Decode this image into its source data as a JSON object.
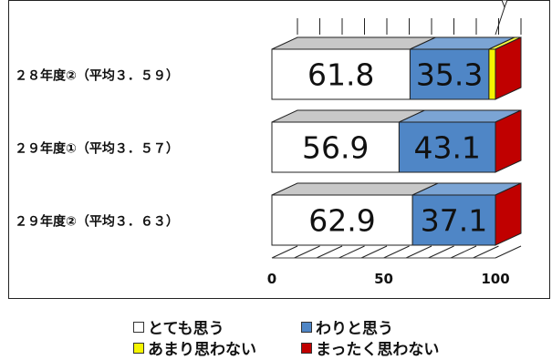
{
  "chart_data": {
    "type": "bar",
    "orientation": "horizontal",
    "stacked": true,
    "categories": [
      "２８年度②（平均３．５９）",
      "２９年度①（平均３．５７）",
      "２９年度②（平均３．６３）"
    ],
    "series": [
      {
        "name": "とても思う",
        "values": [
          61.8,
          56.9,
          62.9
        ],
        "color": "#ffffff",
        "labels": [
          "61.8",
          "56.9",
          "62.9"
        ]
      },
      {
        "name": "わりと思う",
        "values": [
          35.3,
          43.1,
          37.1
        ],
        "color": "#4f86c6",
        "labels": [
          "35.3",
          "43.1",
          "37.1"
        ]
      },
      {
        "name": "あまり思わない",
        "values": [
          2.9,
          0,
          0
        ],
        "color": "#f5f500"
      },
      {
        "name": "まったく思わない",
        "values": [
          0,
          0,
          0
        ],
        "color": "#c00000"
      }
    ],
    "xlim": [
      0,
      100
    ],
    "xticks": [
      "0",
      "50",
      "100"
    ],
    "legend_position": "bottom"
  }
}
